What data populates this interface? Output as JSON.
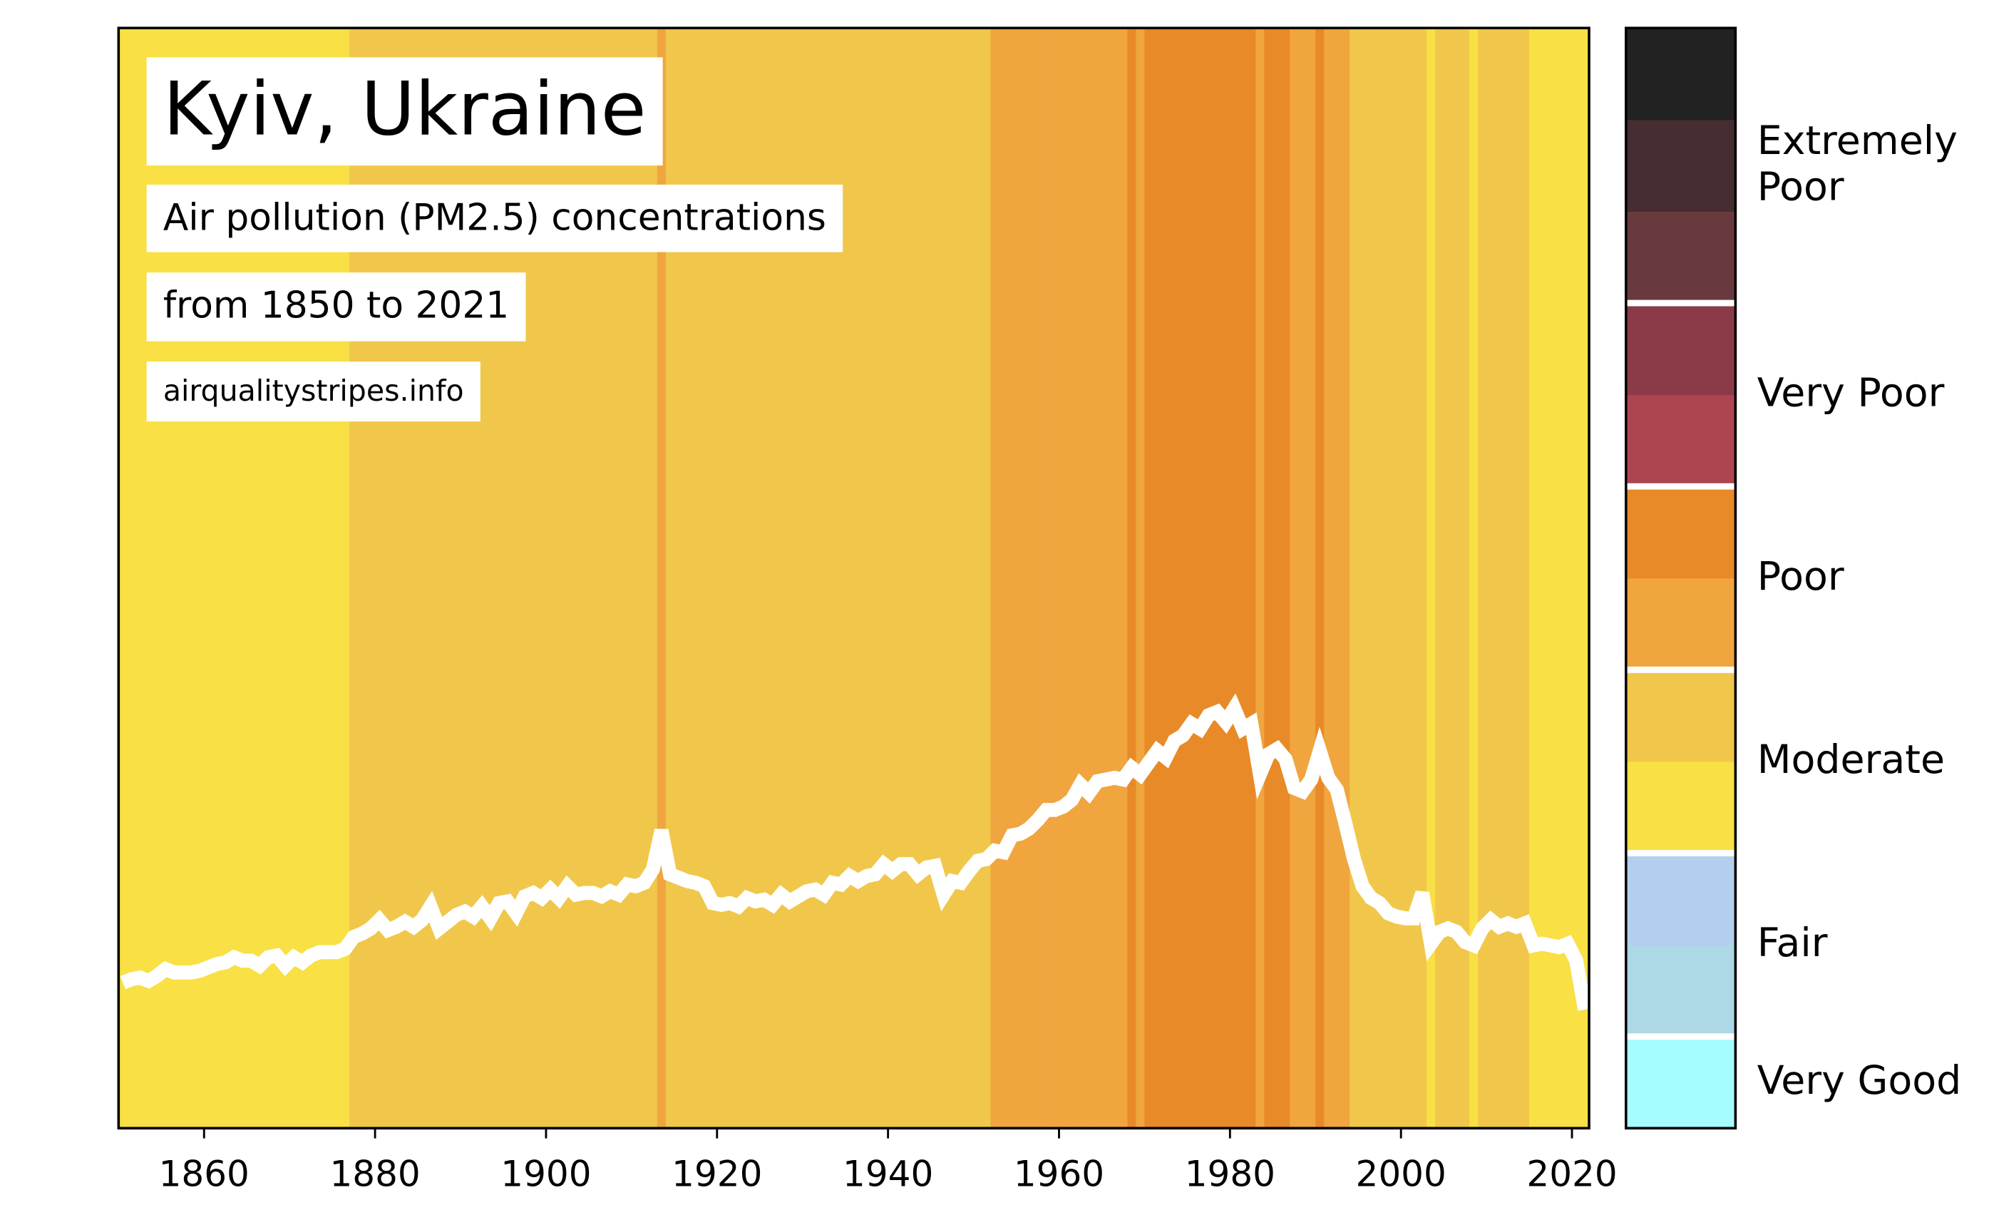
{
  "chart_data": {
    "type": "stripes",
    "title": "Kyiv, Ukraine",
    "subtitle": "Air pollution (PM2.5) concentrations",
    "period": "from 1850 to 2021",
    "source": "airqualitystripes.info",
    "x": [
      1850,
      1851,
      1852,
      1853,
      1854,
      1855,
      1856,
      1857,
      1858,
      1859,
      1860,
      1861,
      1862,
      1863,
      1864,
      1865,
      1866,
      1867,
      1868,
      1869,
      1870,
      1871,
      1872,
      1873,
      1874,
      1875,
      1876,
      1877,
      1878,
      1879,
      1880,
      1881,
      1882,
      1883,
      1884,
      1885,
      1886,
      1887,
      1888,
      1889,
      1890,
      1891,
      1892,
      1893,
      1894,
      1895,
      1896,
      1897,
      1898,
      1899,
      1900,
      1901,
      1902,
      1903,
      1904,
      1905,
      1906,
      1907,
      1908,
      1909,
      1910,
      1911,
      1912,
      1913,
      1914,
      1915,
      1916,
      1917,
      1918,
      1919,
      1920,
      1921,
      1922,
      1923,
      1924,
      1925,
      1926,
      1927,
      1928,
      1929,
      1930,
      1931,
      1932,
      1933,
      1934,
      1935,
      1936,
      1937,
      1938,
      1939,
      1940,
      1941,
      1942,
      1943,
      1944,
      1945,
      1946,
      1947,
      1948,
      1949,
      1950,
      1951,
      1952,
      1953,
      1954,
      1955,
      1956,
      1957,
      1958,
      1959,
      1960,
      1961,
      1962,
      1963,
      1964,
      1965,
      1966,
      1967,
      1968,
      1969,
      1970,
      1971,
      1972,
      1973,
      1974,
      1975,
      1976,
      1977,
      1978,
      1979,
      1980,
      1981,
      1982,
      1983,
      1984,
      1985,
      1986,
      1987,
      1988,
      1989,
      1990,
      1991,
      1992,
      1993,
      1994,
      1995,
      1996,
      1997,
      1998,
      1999,
      2000,
      2001,
      2002,
      2003,
      2004,
      2005,
      2006,
      2007,
      2008,
      2009,
      2010,
      2011,
      2012,
      2013,
      2014,
      2015,
      2016,
      2017,
      2018,
      2019,
      2020,
      2021
    ],
    "values": [
      17.6,
      17.8,
      17.9,
      17.7,
      18.0,
      18.4,
      18.2,
      18.2,
      18.2,
      18.3,
      18.5,
      18.7,
      18.8,
      19.1,
      18.9,
      18.9,
      18.6,
      19.1,
      19.2,
      18.6,
      19.1,
      18.8,
      19.2,
      19.4,
      19.4,
      19.4,
      19.6,
      20.3,
      20.5,
      20.8,
      21.3,
      20.7,
      20.9,
      21.2,
      20.9,
      21.3,
      22.1,
      20.8,
      21.2,
      21.6,
      21.8,
      21.5,
      22.1,
      21.4,
      22.3,
      22.4,
      21.7,
      22.7,
      22.9,
      22.6,
      23.1,
      22.6,
      23.3,
      22.8,
      22.9,
      22.9,
      22.7,
      23.0,
      22.8,
      23.4,
      23.3,
      23.5,
      24.3,
      26.6,
      24.0,
      23.8,
      23.6,
      23.5,
      23.3,
      22.3,
      22.2,
      22.3,
      22.1,
      22.6,
      22.4,
      22.5,
      22.2,
      22.8,
      22.4,
      22.7,
      23.0,
      23.1,
      22.8,
      23.5,
      23.4,
      23.9,
      23.6,
      23.9,
      24.0,
      24.6,
      24.2,
      24.6,
      24.6,
      24.0,
      24.4,
      24.5,
      22.8,
      23.6,
      23.5,
      24.2,
      24.8,
      24.9,
      25.4,
      25.3,
      26.3,
      26.4,
      26.7,
      27.2,
      27.8,
      27.8,
      28.0,
      28.4,
      29.3,
      28.8,
      29.5,
      29.6,
      29.7,
      29.6,
      30.3,
      29.9,
      30.6,
      31.3,
      30.9,
      31.9,
      32.2,
      32.9,
      32.6,
      33.4,
      33.6,
      33.0,
      33.8,
      32.6,
      32.9,
      29.9,
      31.1,
      31.4,
      30.8,
      29.1,
      28.9,
      29.6,
      31.3,
      29.7,
      29.0,
      27.0,
      24.9,
      23.3,
      22.6,
      22.3,
      21.7,
      21.5,
      21.4,
      21.4,
      22.9,
      19.9,
      20.6,
      20.8,
      20.6,
      20.0,
      19.8,
      20.8,
      21.3,
      20.9,
      21.1,
      20.9,
      21.1,
      19.8,
      19.9,
      19.8,
      19.7,
      19.9,
      18.9,
      16.0
    ],
    "line_color": "#ffffff",
    "xlim": [
      1850,
      2022
    ],
    "xticks": [
      1860,
      1880,
      1900,
      1920,
      1940,
      1960,
      1980,
      2000,
      2020
    ],
    "ylim": [
      9,
      74
    ],
    "levels": [
      0,
      5,
      10,
      15,
      20,
      25,
      30,
      35,
      40,
      45,
      50,
      55,
      60
    ],
    "level_colors": [
      "#a6fdff",
      "#add8e6",
      "#b2d0ee",
      "#f8e045",
      "#f1c74b",
      "#f0a53f",
      "#e88a27",
      "#ad4551",
      "#8b3a47",
      "#693a3d",
      "#452d31",
      "#222222"
    ],
    "level_breaks": [
      5,
      15,
      25,
      35,
      45
    ],
    "level_labels": [
      "Very Good",
      "Fair",
      "Moderate",
      "Poor",
      "Very Poor",
      "Extremely Poor"
    ]
  }
}
